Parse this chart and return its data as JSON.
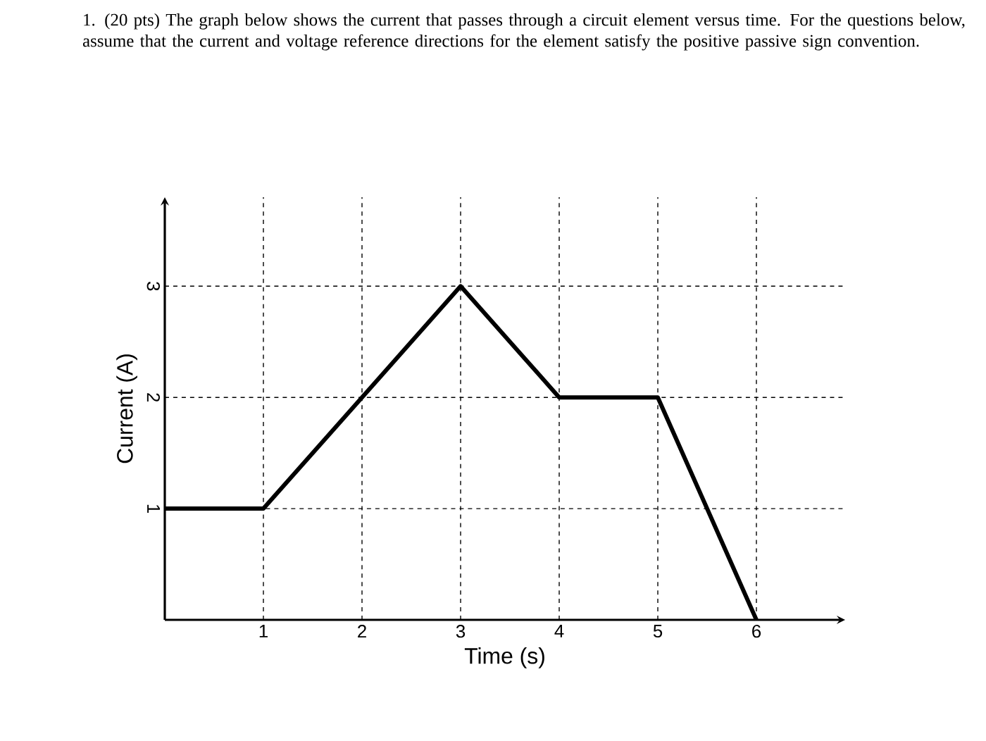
{
  "chart_data": {
    "type": "line",
    "title": "1. (20 pts) The graph below shows the current that passes through a circuit element versus time. For the questions below, assume that the current and voltage reference directions for the element satisfy the positive passive sign convention.",
    "xlabel": "Time (s)",
    "ylabel": "Current (A)",
    "x": [
      0,
      1,
      3,
      4,
      5,
      6
    ],
    "series": [
      {
        "color": "#000000",
        "values": [
          1,
          1,
          3,
          2,
          2,
          0
        ]
      }
    ],
    "xlim": [
      0,
      6.9
    ],
    "ylim": [
      0,
      3.8
    ],
    "xticks": [
      1,
      2,
      3,
      4,
      5,
      6
    ],
    "yticks": [
      1,
      2,
      3
    ],
    "grid": true,
    "marker": "none",
    "line_style": "solid"
  }
}
